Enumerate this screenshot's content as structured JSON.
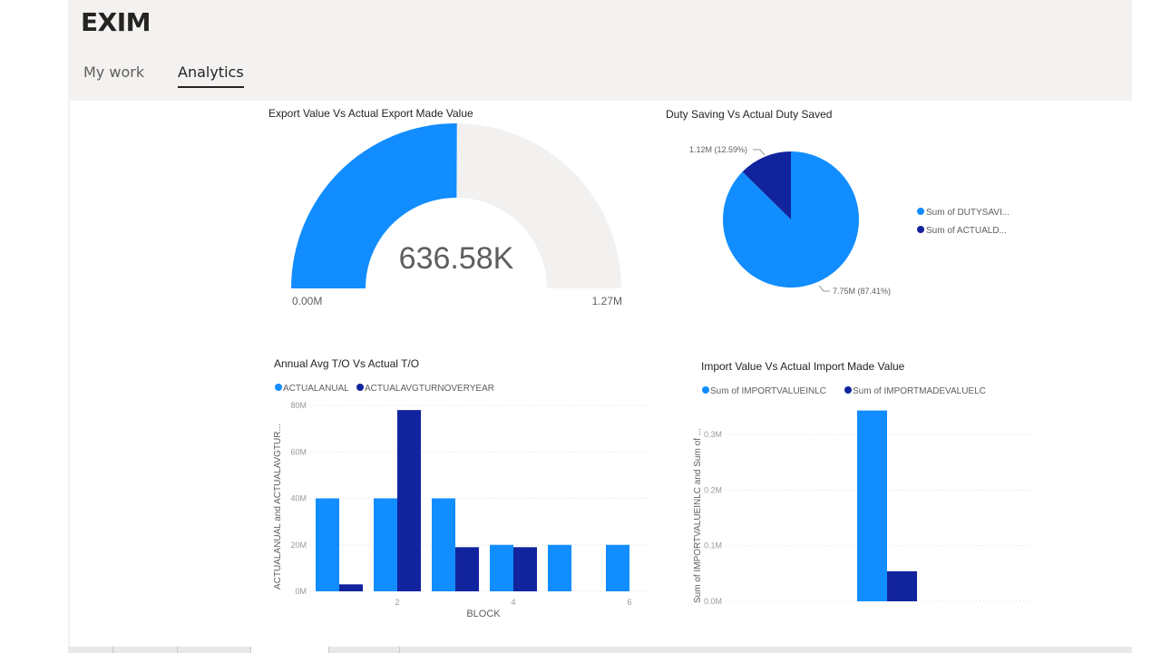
{
  "app": {
    "title": "EXIM"
  },
  "tabs": [
    {
      "label": "My work",
      "active": false
    },
    {
      "label": "Analytics",
      "active": true
    }
  ],
  "colors": {
    "primary": "#118dff",
    "secondary": "#12239e",
    "gauge_track": "#f2f1f0"
  },
  "gauge": {
    "title": "Export Value Vs Actual Export Made Value",
    "value_label": "636.58K",
    "value": 636580,
    "min_label": "0.00M",
    "max_label": "1.27M",
    "min": 0,
    "max": 1270000
  },
  "chart_data": [
    {
      "type": "pie",
      "title": "Duty Saving Vs Actual Duty Saved",
      "slices": [
        {
          "name": "Sum of DUTYSAVI...",
          "value": 7.75,
          "percent": 87.41,
          "label": "7.75M (87.41%)"
        },
        {
          "name": "Sum of ACTUALD...",
          "value": 1.12,
          "percent": 12.59,
          "label": "1.12M (12.59%)"
        }
      ],
      "legend": "right"
    },
    {
      "type": "bar",
      "title": "Annual Avg T/O Vs Actual T/O",
      "xlabel": "BLOCK",
      "ylabel": "ACTUALANUAL and ACTUALAVGTUR...",
      "categories": [
        1,
        2,
        3,
        4,
        5,
        6
      ],
      "xticks": [
        "2",
        "4",
        "6"
      ],
      "yticks": [
        "0M",
        "20M",
        "40M",
        "60M",
        "80M"
      ],
      "ylim": [
        0,
        80
      ],
      "series": [
        {
          "name": "ACTUALANUAL",
          "values": [
            40,
            40,
            40,
            20,
            20,
            20
          ]
        },
        {
          "name": "ACTUALAVGTURNOVERYEAR",
          "values": [
            3,
            78,
            19,
            19,
            null,
            null
          ]
        }
      ],
      "legend": "top-left",
      "grid": true
    },
    {
      "type": "bar",
      "title": "Import Value Vs Actual Import Made Value",
      "ylabel": "Sum of IMPORTVALUEINLC and Sum of ...",
      "yticks": [
        "0.0M",
        "0.1M",
        "0.2M",
        "0.3M"
      ],
      "ylim": [
        0,
        0.35
      ],
      "series": [
        {
          "name": "Sum of IMPORTVALUEINLC",
          "values": [
            0.343
          ]
        },
        {
          "name": "Sum of IMPORTMADEVALUELC",
          "values": [
            0.054
          ]
        }
      ],
      "legend": "top-left",
      "grid": true
    }
  ]
}
